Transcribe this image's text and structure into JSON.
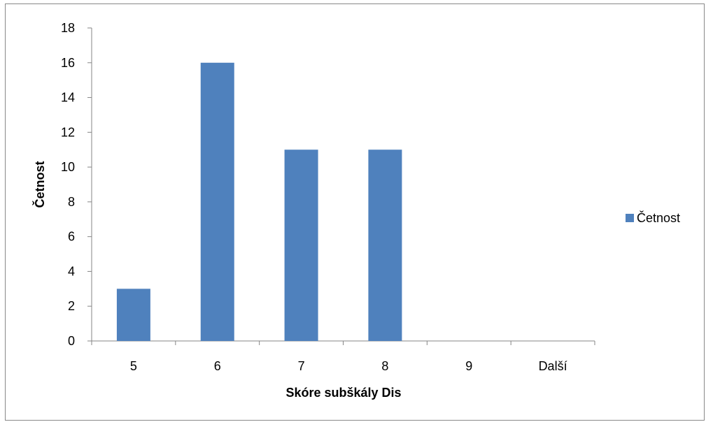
{
  "chart_data": {
    "type": "bar",
    "categories": [
      "5",
      "6",
      "7",
      "8",
      "9",
      "Další"
    ],
    "series": [
      {
        "name": "Četnost",
        "values": [
          3,
          16,
          11,
          11,
          0,
          0
        ],
        "color": "#4F81BD"
      }
    ],
    "xlabel": "Skóre subškály Dis",
    "ylabel": "Četnost",
    "ylim": [
      0,
      18
    ],
    "yticks": [
      "0",
      "2",
      "4",
      "6",
      "8",
      "10",
      "12",
      "14",
      "16",
      "18"
    ],
    "grid": false,
    "legend_position": "right"
  }
}
